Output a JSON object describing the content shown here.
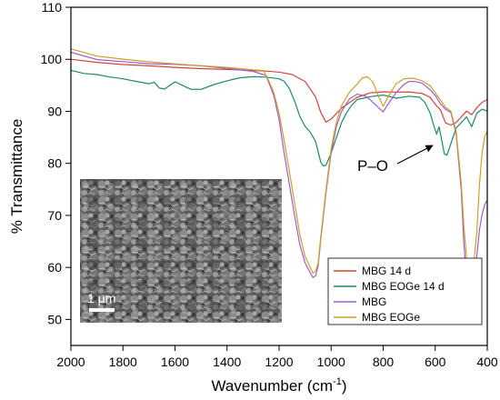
{
  "chart_data": {
    "type": "line",
    "xlabel": "Wavenumber (cm",
    "xlabel_sup": "-1",
    "xlabel_close": ")",
    "ylabel": "% Transmittance",
    "xlim": [
      2000,
      400
    ],
    "ylim": [
      45,
      110
    ],
    "x_ticks": [
      2000,
      1800,
      1600,
      1400,
      1200,
      1000,
      800,
      600,
      400
    ],
    "y_ticks": [
      50,
      60,
      70,
      80,
      90,
      100,
      110
    ],
    "grid": false,
    "legend_position": "bottom-right",
    "series": [
      {
        "name": "MBG 14 d",
        "color": "#d0453a",
        "points": [
          [
            2000,
            100.0
          ],
          [
            1900,
            99.3
          ],
          [
            1800,
            98.8
          ],
          [
            1700,
            98.5
          ],
          [
            1600,
            98.2
          ],
          [
            1500,
            98.0
          ],
          [
            1400,
            97.9
          ],
          [
            1300,
            97.8
          ],
          [
            1250,
            97.8
          ],
          [
            1200,
            97.7
          ],
          [
            1150,
            97.3
          ],
          [
            1100,
            96.0
          ],
          [
            1060,
            93.0
          ],
          [
            1040,
            90.0
          ],
          [
            1020,
            88.0
          ],
          [
            1000,
            88.5
          ],
          [
            960,
            90.5
          ],
          [
            900,
            92.5
          ],
          [
            850,
            93.3
          ],
          [
            800,
            93.5
          ],
          [
            750,
            93.5
          ],
          [
            700,
            93.6
          ],
          [
            650,
            93.4
          ],
          [
            620,
            92.8
          ],
          [
            600,
            91.5
          ],
          [
            580,
            90.5
          ],
          [
            560,
            88.0
          ],
          [
            540,
            87.6
          ],
          [
            520,
            88.0
          ],
          [
            500,
            89.0
          ],
          [
            480,
            90.0
          ],
          [
            460,
            89.2
          ],
          [
            440,
            90.5
          ],
          [
            420,
            91.5
          ],
          [
            400,
            92.0
          ]
        ]
      },
      {
        "name": "MBG EOGe 14 d",
        "color": "#1a8a6a",
        "points": [
          [
            2000,
            97.8
          ],
          [
            1950,
            97.3
          ],
          [
            1900,
            97.2
          ],
          [
            1850,
            96.8
          ],
          [
            1800,
            96.5
          ],
          [
            1750,
            96.0
          ],
          [
            1700,
            95.5
          ],
          [
            1680,
            95.7
          ],
          [
            1660,
            94.5
          ],
          [
            1640,
            94.2
          ],
          [
            1600,
            95.5
          ],
          [
            1560,
            94.5
          ],
          [
            1540,
            94.0
          ],
          [
            1500,
            94.0
          ],
          [
            1450,
            95.0
          ],
          [
            1400,
            95.8
          ],
          [
            1350,
            96.5
          ],
          [
            1300,
            96.8
          ],
          [
            1250,
            96.8
          ],
          [
            1200,
            96.5
          ],
          [
            1180,
            96.0
          ],
          [
            1160,
            94.5
          ],
          [
            1140,
            92.0
          ],
          [
            1120,
            89.0
          ],
          [
            1100,
            87.0
          ],
          [
            1080,
            85.8
          ],
          [
            1060,
            84.0
          ],
          [
            1040,
            80.0
          ],
          [
            1030,
            79.3
          ],
          [
            1020,
            79.5
          ],
          [
            1000,
            82.0
          ],
          [
            980,
            85.0
          ],
          [
            960,
            88.0
          ],
          [
            940,
            90.0
          ],
          [
            920,
            91.5
          ],
          [
            900,
            92.5
          ],
          [
            850,
            93.0
          ],
          [
            800,
            93.2
          ],
          [
            750,
            92.5
          ],
          [
            700,
            92.8
          ],
          [
            660,
            92.5
          ],
          [
            640,
            91.5
          ],
          [
            620,
            89.5
          ],
          [
            605,
            87.0
          ],
          [
            595,
            85.5
          ],
          [
            585,
            87.0
          ],
          [
            575,
            84.5
          ],
          [
            565,
            82.0
          ],
          [
            555,
            81.8
          ],
          [
            540,
            84.0
          ],
          [
            520,
            87.0
          ],
          [
            500,
            88.0
          ],
          [
            480,
            89.0
          ],
          [
            460,
            87.0
          ],
          [
            440,
            89.5
          ],
          [
            420,
            90.2
          ],
          [
            400,
            89.8
          ]
        ]
      },
      {
        "name": "MBG",
        "color": "#a35ad0",
        "points": [
          [
            2000,
            101.5
          ],
          [
            1900,
            100.0
          ],
          [
            1800,
            99.5
          ],
          [
            1700,
            99.0
          ],
          [
            1600,
            98.8
          ],
          [
            1500,
            98.5
          ],
          [
            1400,
            98.0
          ],
          [
            1300,
            97.5
          ],
          [
            1250,
            96.8
          ],
          [
            1220,
            93.0
          ],
          [
            1200,
            88.5
          ],
          [
            1180,
            82.0
          ],
          [
            1160,
            76.0
          ],
          [
            1140,
            70.0
          ],
          [
            1120,
            64.5
          ],
          [
            1100,
            61.0
          ],
          [
            1080,
            59.0
          ],
          [
            1070,
            58.0
          ],
          [
            1060,
            58.2
          ],
          [
            1050,
            60.0
          ],
          [
            1040,
            65.0
          ],
          [
            1020,
            74.0
          ],
          [
            1000,
            82.0
          ],
          [
            980,
            87.0
          ],
          [
            960,
            90.0
          ],
          [
            930,
            92.5
          ],
          [
            900,
            93.5
          ],
          [
            870,
            93.2
          ],
          [
            850,
            92.5
          ],
          [
            820,
            91.0
          ],
          [
            800,
            90.0
          ],
          [
            780,
            91.5
          ],
          [
            750,
            93.5
          ],
          [
            720,
            95.0
          ],
          [
            700,
            95.5
          ],
          [
            680,
            95.5
          ],
          [
            650,
            95.2
          ],
          [
            620,
            94.0
          ],
          [
            600,
            93.0
          ],
          [
            580,
            91.5
          ],
          [
            560,
            90.5
          ],
          [
            540,
            90.0
          ],
          [
            520,
            86.0
          ],
          [
            500,
            75.0
          ],
          [
            490,
            65.0
          ],
          [
            480,
            58.0
          ],
          [
            470,
            53.0
          ],
          [
            465,
            51.8
          ],
          [
            460,
            52.5
          ],
          [
            450,
            57.0
          ],
          [
            440,
            62.0
          ],
          [
            430,
            67.0
          ],
          [
            420,
            70.0
          ],
          [
            410,
            72.0
          ],
          [
            400,
            73.0
          ]
        ]
      },
      {
        "name": "MBG EOGe",
        "color": "#c9a227",
        "points": [
          [
            2000,
            101.8
          ],
          [
            1900,
            100.5
          ],
          [
            1800,
            100.0
          ],
          [
            1700,
            99.6
          ],
          [
            1600,
            99.3
          ],
          [
            1500,
            99.0
          ],
          [
            1400,
            98.7
          ],
          [
            1300,
            98.2
          ],
          [
            1260,
            98.0
          ],
          [
            1240,
            96.0
          ],
          [
            1220,
            93.5
          ],
          [
            1200,
            89.5
          ],
          [
            1180,
            84.0
          ],
          [
            1160,
            78.0
          ],
          [
            1140,
            72.0
          ],
          [
            1120,
            66.0
          ],
          [
            1100,
            62.0
          ],
          [
            1080,
            60.0
          ],
          [
            1070,
            59.0
          ],
          [
            1060,
            59.5
          ],
          [
            1050,
            61.0
          ],
          [
            1040,
            66.0
          ],
          [
            1020,
            75.0
          ],
          [
            1000,
            83.0
          ],
          [
            980,
            88.0
          ],
          [
            960,
            91.0
          ],
          [
            930,
            93.5
          ],
          [
            900,
            95.0
          ],
          [
            880,
            96.2
          ],
          [
            860,
            96.4
          ],
          [
            840,
            95.5
          ],
          [
            820,
            93.0
          ],
          [
            800,
            91.0
          ],
          [
            780,
            93.0
          ],
          [
            750,
            95.5
          ],
          [
            720,
            96.5
          ],
          [
            700,
            96.6
          ],
          [
            680,
            96.5
          ],
          [
            650,
            96.0
          ],
          [
            620,
            95.0
          ],
          [
            600,
            93.5
          ],
          [
            580,
            92.0
          ],
          [
            560,
            90.5
          ],
          [
            540,
            89.8
          ],
          [
            520,
            86.0
          ],
          [
            500,
            76.0
          ],
          [
            490,
            68.0
          ],
          [
            480,
            62.0
          ],
          [
            470,
            59.5
          ],
          [
            465,
            59.0
          ],
          [
            460,
            59.5
          ],
          [
            450,
            62.0
          ],
          [
            440,
            67.0
          ],
          [
            430,
            76.0
          ],
          [
            420,
            82.0
          ],
          [
            410,
            85.0
          ],
          [
            400,
            86.0
          ]
        ]
      }
    ],
    "annotations": [
      {
        "text": "P–O",
        "x": 690,
        "y": 80.0,
        "arrow_to": [
          578,
          85.0
        ]
      }
    ],
    "inset": {
      "description_label": "SEM micrograph",
      "scale_bar_label": "1 μm"
    }
  }
}
